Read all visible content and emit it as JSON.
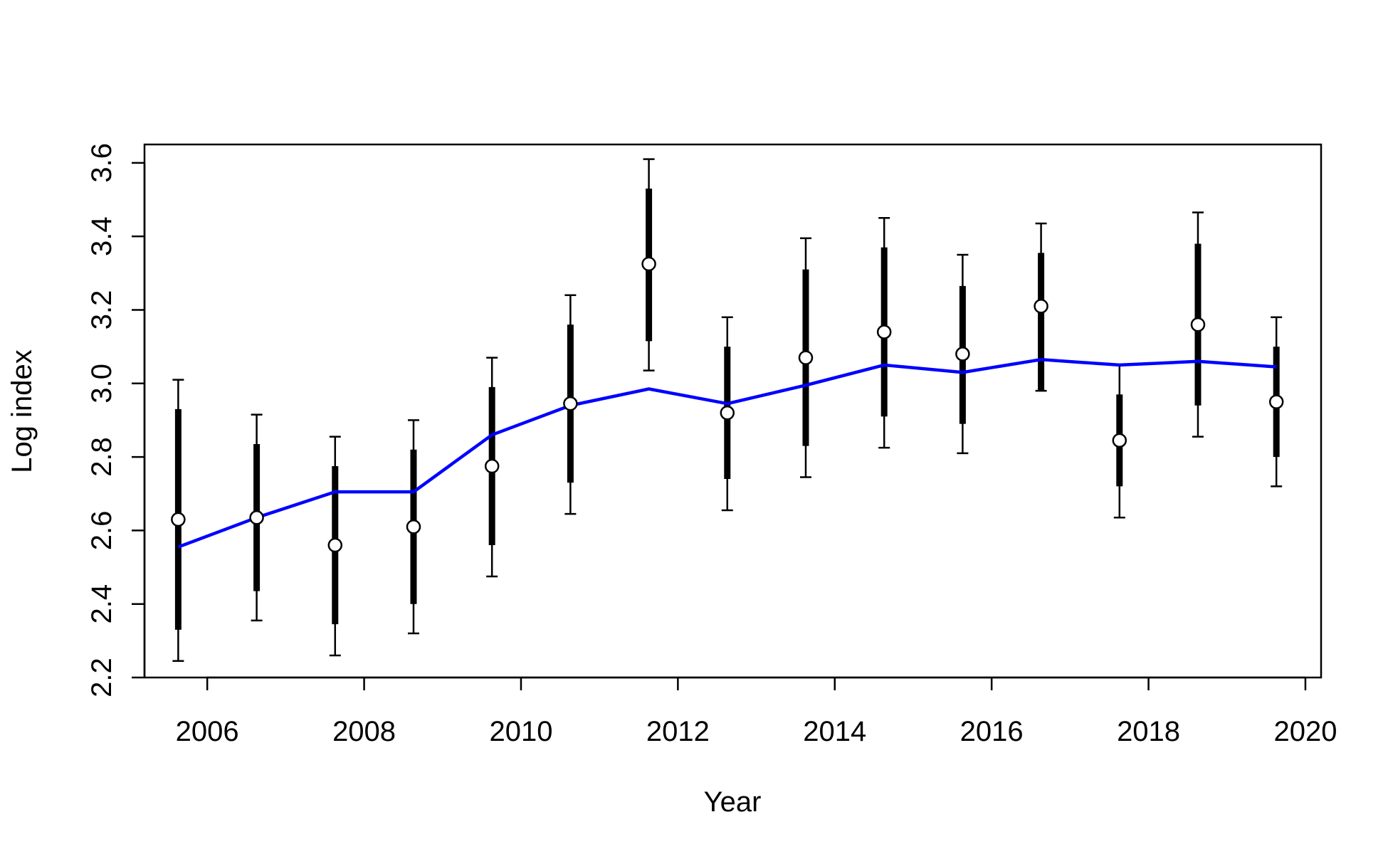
{
  "chart_data": {
    "type": "line",
    "xlabel": "Year",
    "ylabel": "Log index",
    "xlim": [
      2005.2,
      2020.2
    ],
    "ylim": [
      2.2,
      3.65
    ],
    "x_ticks": [
      2006,
      2008,
      2010,
      2012,
      2014,
      2016,
      2018,
      2020
    ],
    "y_ticks": [
      2.2,
      2.4,
      2.6,
      2.8,
      3.0,
      3.2,
      3.4,
      3.6
    ],
    "x_tick_labels": [
      "2006",
      "2008",
      "2010",
      "2012",
      "2014",
      "2016",
      "2018",
      "2020"
    ],
    "y_tick_labels": [
      "2.2",
      "2.4",
      "2.6",
      "2.8",
      "3.0",
      "3.2",
      "3.4",
      "3.6"
    ],
    "grid": false,
    "colors": {
      "fitted_line": "#0000ff",
      "observations": "#000000",
      "point_fill": "#ffffff"
    },
    "observations": {
      "x": [
        2005.63,
        2006.63,
        2007.63,
        2008.63,
        2009.63,
        2010.63,
        2011.63,
        2012.63,
        2013.63,
        2014.63,
        2015.63,
        2016.63,
        2017.63,
        2018.63,
        2019.63
      ],
      "y": [
        2.63,
        2.635,
        2.56,
        2.61,
        2.775,
        2.945,
        3.325,
        2.92,
        3.07,
        3.14,
        3.08,
        3.21,
        2.845,
        3.16,
        2.95
      ],
      "inner_lower": [
        2.33,
        2.435,
        2.345,
        2.4,
        2.56,
        2.73,
        3.115,
        2.74,
        2.83,
        2.91,
        2.89,
        2.98,
        2.72,
        2.94,
        2.8
      ],
      "inner_upper": [
        2.93,
        2.835,
        2.775,
        2.82,
        2.99,
        3.16,
        3.53,
        3.1,
        3.31,
        3.37,
        3.265,
        3.355,
        2.97,
        3.38,
        3.1
      ],
      "outer_lower": [
        2.245,
        2.355,
        2.26,
        2.32,
        2.475,
        2.645,
        3.035,
        2.655,
        2.745,
        2.825,
        2.81,
        2.98,
        2.635,
        2.855,
        2.72
      ],
      "outer_upper": [
        3.01,
        2.915,
        2.855,
        2.9,
        3.07,
        3.24,
        3.61,
        3.18,
        3.395,
        3.45,
        3.35,
        3.435,
        3.05,
        3.465,
        3.18
      ]
    },
    "series": [
      {
        "x": [
          2005.63,
          2006.63,
          2007.63,
          2008.63,
          2009.63,
          2010.63,
          2011.63,
          2012.63,
          2013.63,
          2014.63,
          2015.63,
          2016.63,
          2017.63,
          2018.63,
          2019.63
        ],
        "values": [
          2.555,
          2.635,
          2.705,
          2.705,
          2.86,
          2.94,
          2.985,
          2.945,
          2.995,
          3.05,
          3.03,
          3.065,
          3.05,
          3.06,
          3.045
        ]
      }
    ]
  }
}
